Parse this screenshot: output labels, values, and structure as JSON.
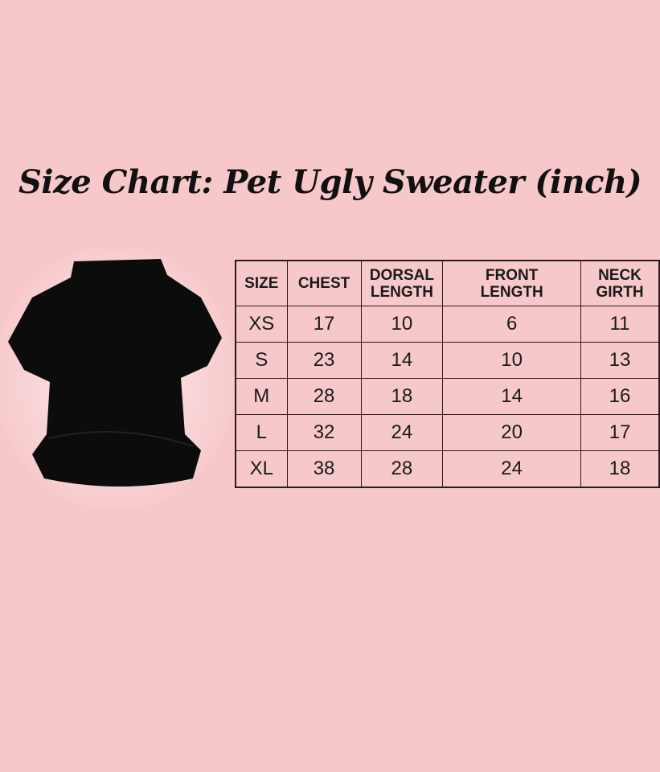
{
  "title": "Size Chart: Pet Ugly Sweater (inch)",
  "image": {
    "name": "black pet sweater",
    "color": "#0c0c0c"
  },
  "table": {
    "headers": [
      "SIZE",
      "CHEST",
      "DORSAL LENGTH",
      "FRONT LENGTH",
      "NECK GIRTH"
    ],
    "rows": [
      [
        "XS",
        "17",
        "10",
        "6",
        "11"
      ],
      [
        "S",
        "23",
        "14",
        "10",
        "13"
      ],
      [
        "M",
        "28",
        "18",
        "14",
        "16"
      ],
      [
        "L",
        "32",
        "24",
        "20",
        "17"
      ],
      [
        "XL",
        "38",
        "28",
        "24",
        "18"
      ]
    ]
  },
  "colors": {
    "background": "#f7c8ca",
    "text": "#111111",
    "border": "#2a1a1c"
  }
}
